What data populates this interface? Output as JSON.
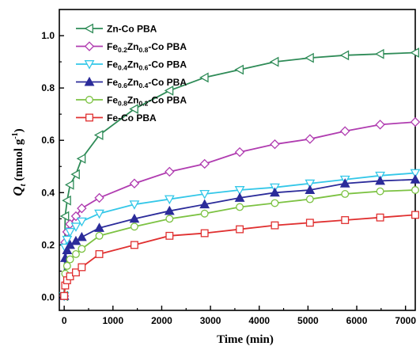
{
  "chart_data": {
    "type": "line",
    "xlabel": "Time (min)",
    "ylabel_main": "Q",
    "ylabel_sub": "t",
    "ylabel_rest": " (mmol g",
    "ylabel_sup": "-1",
    "ylabel_close": ")",
    "xlim": [
      -100,
      7200
    ],
    "ylim": [
      -0.05,
      1.1
    ],
    "xticks": [
      0,
      1000,
      2000,
      3000,
      4000,
      5000,
      6000,
      7000
    ],
    "yticks": [
      0.0,
      0.2,
      0.4,
      0.6,
      0.8,
      1.0
    ],
    "grid": false,
    "legend_position": "top-left",
    "x": [
      0,
      20,
      60,
      120,
      240,
      360,
      720,
      1440,
      2160,
      2880,
      3600,
      4320,
      5040,
      5760,
      6480,
      7200
    ],
    "series": [
      {
        "name": "Zn-Co PBA",
        "legend_parts": [
          {
            "t": "Zn-Co PBA",
            "sub": false
          }
        ],
        "color": "#2e8b57",
        "marker": "triangle-left",
        "values": [
          0.005,
          0.31,
          0.37,
          0.43,
          0.47,
          0.53,
          0.62,
          0.72,
          0.79,
          0.84,
          0.87,
          0.9,
          0.915,
          0.925,
          0.93,
          0.935
        ]
      },
      {
        "name": "Fe0.2Zn0.8-Co PBA",
        "legend_parts": [
          {
            "t": "Fe",
            "sub": false
          },
          {
            "t": "0.2",
            "sub": true
          },
          {
            "t": "Zn",
            "sub": false
          },
          {
            "t": "0.8",
            "sub": true
          },
          {
            "t": "-Co PBA",
            "sub": false
          }
        ],
        "color": "#b03cb0",
        "marker": "diamond",
        "values": [
          0.005,
          0.21,
          0.25,
          0.28,
          0.31,
          0.34,
          0.38,
          0.435,
          0.48,
          0.51,
          0.555,
          0.585,
          0.605,
          0.635,
          0.66,
          0.67
        ]
      },
      {
        "name": "Fe0.4Zn0.6-Co PBA",
        "legend_parts": [
          {
            "t": "Fe",
            "sub": false
          },
          {
            "t": "0.4",
            "sub": true
          },
          {
            "t": "Zn",
            "sub": false
          },
          {
            "t": "0.6",
            "sub": true
          },
          {
            "t": "-Co PBA",
            "sub": false
          }
        ],
        "color": "#33c7e8",
        "marker": "triangle-down",
        "values": [
          0.005,
          0.19,
          0.22,
          0.25,
          0.27,
          0.29,
          0.32,
          0.355,
          0.375,
          0.395,
          0.41,
          0.42,
          0.435,
          0.45,
          0.465,
          0.475
        ]
      },
      {
        "name": "Fe0.6Zn0.4-Co PBA",
        "legend_parts": [
          {
            "t": "Fe",
            "sub": false
          },
          {
            "t": "0.6",
            "sub": true
          },
          {
            "t": "Zn",
            "sub": false
          },
          {
            "t": "0.4",
            "sub": true
          },
          {
            "t": "-Co PBA",
            "sub": false
          }
        ],
        "color": "#2b2b9a",
        "marker": "triangle-up",
        "values": [
          0.005,
          0.15,
          0.18,
          0.2,
          0.215,
          0.23,
          0.265,
          0.3,
          0.33,
          0.355,
          0.38,
          0.4,
          0.41,
          0.435,
          0.445,
          0.45
        ]
      },
      {
        "name": "Fe0.8Zn0.2-Co PBA",
        "legend_parts": [
          {
            "t": "Fe",
            "sub": false
          },
          {
            "t": "0.8",
            "sub": true
          },
          {
            "t": "Zn",
            "sub": false
          },
          {
            "t": "0.2",
            "sub": true
          },
          {
            "t": "-Co PBA",
            "sub": false
          }
        ],
        "color": "#7cc242",
        "marker": "circle",
        "values": [
          0.005,
          0.09,
          0.12,
          0.145,
          0.165,
          0.185,
          0.235,
          0.27,
          0.3,
          0.32,
          0.345,
          0.36,
          0.375,
          0.395,
          0.405,
          0.41
        ]
      },
      {
        "name": "Fe-Co PBA",
        "legend_parts": [
          {
            "t": "Fe-Co PBA",
            "sub": false
          }
        ],
        "color": "#e03030",
        "marker": "square",
        "values": [
          0.005,
          0.045,
          0.065,
          0.08,
          0.095,
          0.115,
          0.165,
          0.2,
          0.235,
          0.245,
          0.26,
          0.275,
          0.285,
          0.295,
          0.305,
          0.315
        ]
      }
    ]
  }
}
